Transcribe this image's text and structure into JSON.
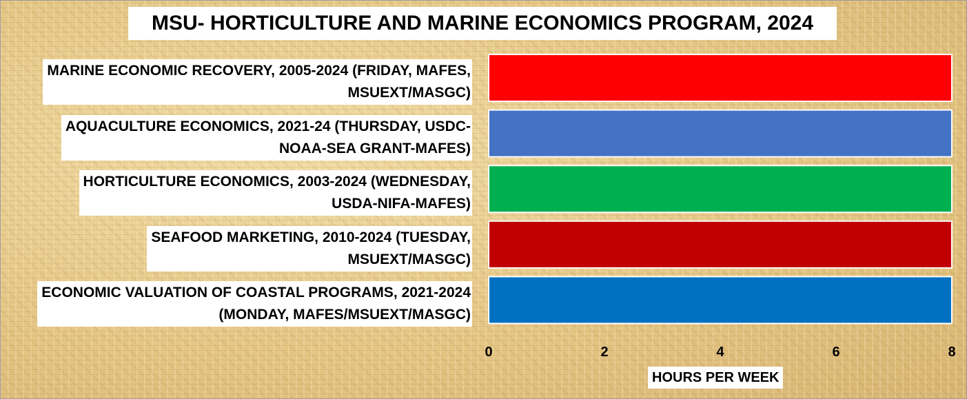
{
  "chart_data": {
    "type": "bar",
    "orientation": "horizontal",
    "title": "MSU- HORTICULTURE AND MARINE ECONOMICS PROGRAM, 2024",
    "xlabel": "HOURS PER WEEK",
    "ylabel": "",
    "xlim": [
      0,
      8
    ],
    "xticks": [
      "0",
      "2",
      "4",
      "6",
      "8"
    ],
    "grid": false,
    "legend": "none",
    "categories": [
      {
        "line1": "MARINE ECONOMIC RECOVERY, 2005-2024 (FRIDAY, MAFES,",
        "line2": "MSUEXT/MASGC)"
      },
      {
        "line1": "AQUACULTURE ECONOMICS, 2021-24 (THURSDAY, USDC-",
        "line2": "NOAA-SEA GRANT-MAFES)"
      },
      {
        "line1": "HORTICULTURE ECONOMICS, 2003-2024 (WEDNESDAY,",
        "line2": "USDA-NIFA-MAFES)"
      },
      {
        "line1": "SEAFOOD MARKETING, 2010-2024 (TUESDAY,",
        "line2": "MSUEXT/MASGC)"
      },
      {
        "line1": "ECONOMIC VALUATION OF COASTAL PROGRAMS, 2021-2024",
        "line2": "(MONDAY, MAFES/MSUEXT/MASGC)"
      }
    ],
    "values": [
      8,
      8,
      8,
      8,
      8
    ],
    "colors": [
      "#ff0000",
      "#4472c4",
      "#00b050",
      "#c00000",
      "#0070c0"
    ]
  }
}
